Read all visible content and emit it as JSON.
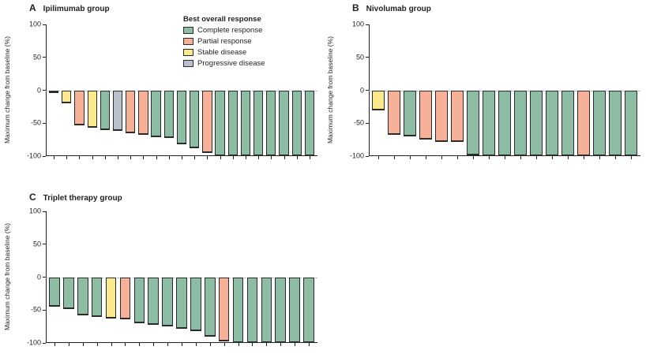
{
  "legend": {
    "title": "Best overall response",
    "items": [
      {
        "key": "complete",
        "label": "Complete response",
        "color": "#8dbca4"
      },
      {
        "key": "partial",
        "label": "Partial response",
        "color": "#f6b097"
      },
      {
        "key": "stable",
        "label": "Stable disease",
        "color": "#fae98d"
      },
      {
        "key": "progressive",
        "label": "Progressive disease",
        "color": "#b9c2ca"
      }
    ]
  },
  "colors": {
    "axis": "#231f20",
    "bar_border": "#2b2b2b",
    "zero_line_dashed": "#a6bdc9",
    "background": "#ffffff"
  },
  "chart_data": [
    {
      "type": "bar",
      "panel_letter": "A",
      "title": "Ipilimumab group",
      "ylabel": "Maximum change from baseline (%)",
      "ylim": [
        -100,
        100
      ],
      "yticks": [
        100,
        50,
        0,
        -50,
        -100
      ],
      "zero_line": "dashed",
      "x_axis": "one unlabelled tick per patient",
      "legend_position": "top-right",
      "bars": [
        {
          "value": -4,
          "response": "complete"
        },
        {
          "value": -20,
          "response": "stable"
        },
        {
          "value": -53,
          "response": "partial"
        },
        {
          "value": -57,
          "response": "stable"
        },
        {
          "value": -60,
          "response": "complete"
        },
        {
          "value": -62,
          "response": "progressive"
        },
        {
          "value": -65,
          "response": "partial"
        },
        {
          "value": -68,
          "response": "partial"
        },
        {
          "value": -71,
          "response": "complete"
        },
        {
          "value": -73,
          "response": "complete"
        },
        {
          "value": -82,
          "response": "complete"
        },
        {
          "value": -88,
          "response": "complete"
        },
        {
          "value": -95,
          "response": "partial"
        },
        {
          "value": -100,
          "response": "complete"
        },
        {
          "value": -100,
          "response": "complete"
        },
        {
          "value": -100,
          "response": "complete"
        },
        {
          "value": -100,
          "response": "complete"
        },
        {
          "value": -100,
          "response": "complete"
        },
        {
          "value": -100,
          "response": "complete"
        },
        {
          "value": -100,
          "response": "complete"
        },
        {
          "value": -100,
          "response": "complete"
        }
      ]
    },
    {
      "type": "bar",
      "panel_letter": "B",
      "title": "Nivolumab group",
      "ylabel": "Maximum change from baseline (%)",
      "ylim": [
        -100,
        100
      ],
      "yticks": [
        100,
        50,
        0,
        -50,
        -100
      ],
      "zero_line": "dashed",
      "x_axis": "one unlabelled tick per patient",
      "bars": [
        {
          "value": -31,
          "response": "stable"
        },
        {
          "value": -68,
          "response": "partial"
        },
        {
          "value": -70,
          "response": "complete"
        },
        {
          "value": -75,
          "response": "partial"
        },
        {
          "value": -78,
          "response": "partial"
        },
        {
          "value": -79,
          "response": "partial"
        },
        {
          "value": -99,
          "response": "complete"
        },
        {
          "value": -100,
          "response": "complete"
        },
        {
          "value": -100,
          "response": "complete"
        },
        {
          "value": -100,
          "response": "complete"
        },
        {
          "value": -100,
          "response": "complete"
        },
        {
          "value": -100,
          "response": "complete"
        },
        {
          "value": -100,
          "response": "complete"
        },
        {
          "value": -100,
          "response": "partial"
        },
        {
          "value": -100,
          "response": "complete"
        },
        {
          "value": -100,
          "response": "complete"
        },
        {
          "value": -100,
          "response": "complete"
        }
      ]
    },
    {
      "type": "bar",
      "panel_letter": "C",
      "title": "Triplet therapy group",
      "ylabel": "Maximum change from baseline (%)",
      "ylim": [
        -100,
        100
      ],
      "yticks": [
        100,
        50,
        0,
        -50,
        -100
      ],
      "zero_line": "dashed",
      "x_axis": "one unlabelled tick per patient",
      "bars": [
        {
          "value": -45,
          "response": "complete"
        },
        {
          "value": -48,
          "response": "complete"
        },
        {
          "value": -58,
          "response": "complete"
        },
        {
          "value": -60,
          "response": "complete"
        },
        {
          "value": -63,
          "response": "stable"
        },
        {
          "value": -64,
          "response": "partial"
        },
        {
          "value": -70,
          "response": "complete"
        },
        {
          "value": -72,
          "response": "complete"
        },
        {
          "value": -75,
          "response": "complete"
        },
        {
          "value": -78,
          "response": "complete"
        },
        {
          "value": -82,
          "response": "complete"
        },
        {
          "value": -91,
          "response": "complete"
        },
        {
          "value": -98,
          "response": "partial"
        },
        {
          "value": -100,
          "response": "complete"
        },
        {
          "value": -100,
          "response": "complete"
        },
        {
          "value": -100,
          "response": "complete"
        },
        {
          "value": -100,
          "response": "complete"
        },
        {
          "value": -100,
          "response": "complete"
        },
        {
          "value": -100,
          "response": "complete"
        }
      ]
    }
  ]
}
